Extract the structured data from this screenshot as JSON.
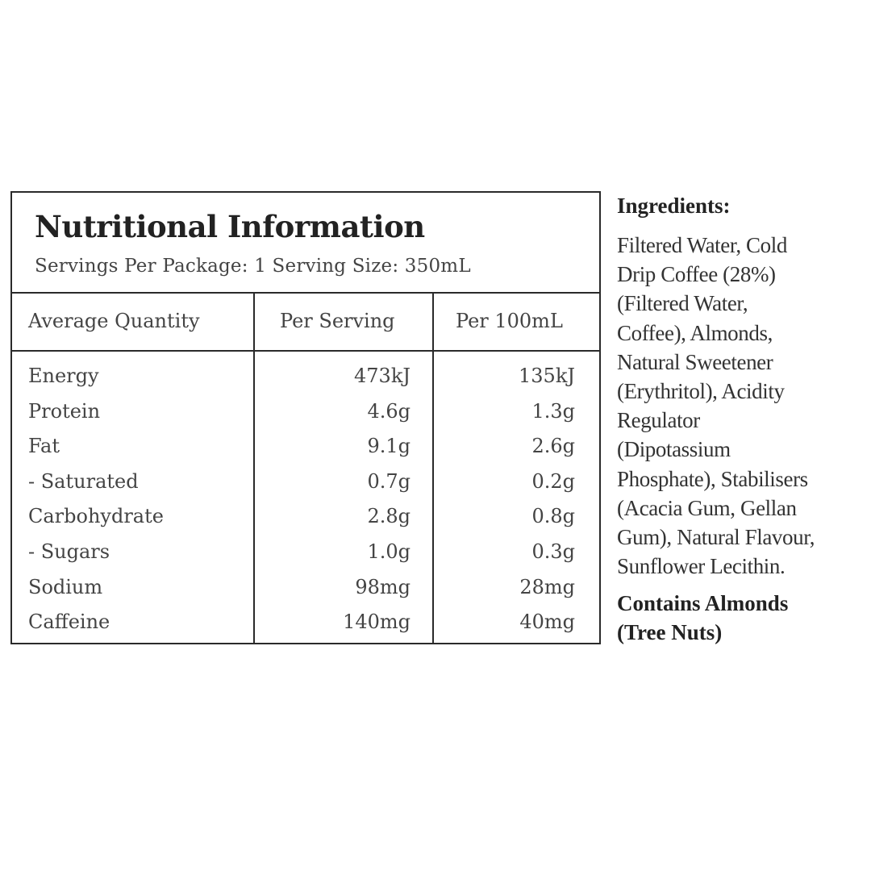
{
  "nutrition": {
    "title": "Nutritional Information",
    "servings": "Servings Per Package: 1  Serving Size: 350mL",
    "columns": [
      "Average Quantity",
      "Per Serving",
      "Per 100mL"
    ],
    "rows": [
      {
        "label": "Energy",
        "per_serving": "473kJ",
        "per_100ml": "135kJ"
      },
      {
        "label": "Protein",
        "per_serving": "4.6g",
        "per_100ml": "1.3g"
      },
      {
        "label": "Fat",
        "per_serving": "9.1g",
        "per_100ml": "2.6g"
      },
      {
        "label": "- Saturated",
        "per_serving": "0.7g",
        "per_100ml": "0.2g"
      },
      {
        "label": "Carbohydrate",
        "per_serving": "2.8g",
        "per_100ml": "0.8g"
      },
      {
        "label": "- Sugars",
        "per_serving": "1.0g",
        "per_100ml": "0.3g"
      },
      {
        "label": "Sodium",
        "per_serving": "98mg",
        "per_100ml": "28mg"
      },
      {
        "label": "Caffeine",
        "per_serving": "140mg",
        "per_100ml": "40mg"
      }
    ]
  },
  "ingredients": {
    "heading": "Ingredients:",
    "lines": [
      "Filtered Water, Cold",
      "Drip Coffee (28%)",
      "(Filtered Water,",
      "Coffee), Almonds,",
      "Natural Sweetener",
      "(Erythritol), Acidity",
      "Regulator",
      "(Dipotassium",
      "Phosphate), Stabilisers",
      "(Acacia Gum, Gellan",
      "Gum), Natural Flavour,",
      "Sunflower Lecithin."
    ],
    "allergen_lines": [
      "Contains Almonds",
      "(Tree Nuts)"
    ]
  }
}
